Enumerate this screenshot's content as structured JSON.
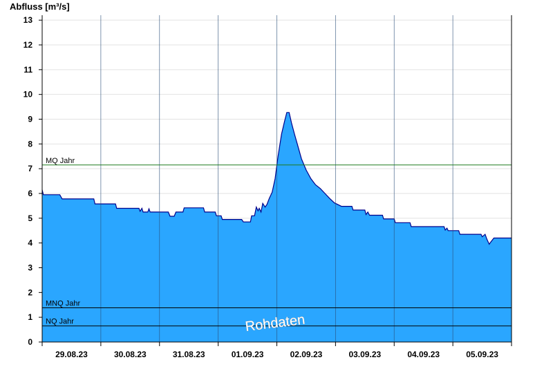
{
  "chart_data": {
    "type": "area",
    "ylabel": "Abfluss [m³/s]",
    "ylim": [
      0,
      13.2
    ],
    "yticks": [
      0,
      1,
      2,
      3,
      4,
      5,
      6,
      7,
      8,
      9,
      10,
      11,
      12,
      13
    ],
    "xlim": [
      0,
      8
    ],
    "xticks": [
      "29.08.23",
      "30.08.23",
      "31.08.23",
      "01.09.23",
      "02.09.23",
      "03.09.23",
      "04.09.23",
      "05.09.23"
    ],
    "grid": true,
    "reference_lines": [
      {
        "label": "MQ Jahr",
        "value": 7.15,
        "color": "#1e7a1e"
      },
      {
        "label": "MNQ Jahr",
        "value": 1.38,
        "color": "#000000"
      },
      {
        "label": "NQ Jahr",
        "value": 0.65,
        "color": "#000000"
      }
    ],
    "series": [
      {
        "fill": "#2aa6ff",
        "line": "#00008b",
        "points": [
          [
            0.0,
            6.15
          ],
          [
            0.02,
            5.95
          ],
          [
            0.3,
            5.95
          ],
          [
            0.34,
            5.78
          ],
          [
            0.7,
            5.78
          ],
          [
            0.88,
            5.78
          ],
          [
            0.9,
            5.58
          ],
          [
            1.25,
            5.58
          ],
          [
            1.27,
            5.4
          ],
          [
            1.65,
            5.4
          ],
          [
            1.67,
            5.28
          ],
          [
            1.7,
            5.4
          ],
          [
            1.72,
            5.25
          ],
          [
            1.8,
            5.25
          ],
          [
            1.82,
            5.38
          ],
          [
            1.84,
            5.25
          ],
          [
            2.15,
            5.25
          ],
          [
            2.18,
            5.08
          ],
          [
            2.25,
            5.08
          ],
          [
            2.28,
            5.25
          ],
          [
            2.4,
            5.25
          ],
          [
            2.42,
            5.42
          ],
          [
            2.75,
            5.42
          ],
          [
            2.77,
            5.25
          ],
          [
            2.95,
            5.25
          ],
          [
            2.97,
            5.1
          ],
          [
            3.05,
            5.1
          ],
          [
            3.07,
            4.95
          ],
          [
            3.4,
            4.95
          ],
          [
            3.43,
            4.85
          ],
          [
            3.55,
            4.85
          ],
          [
            3.57,
            5.1
          ],
          [
            3.62,
            5.1
          ],
          [
            3.65,
            5.45
          ],
          [
            3.68,
            5.3
          ],
          [
            3.7,
            5.4
          ],
          [
            3.73,
            5.25
          ],
          [
            3.76,
            5.6
          ],
          [
            3.8,
            5.45
          ],
          [
            3.83,
            5.55
          ],
          [
            3.87,
            5.8
          ],
          [
            3.92,
            6.05
          ],
          [
            3.97,
            6.6
          ],
          [
            4.02,
            7.5
          ],
          [
            4.08,
            8.4
          ],
          [
            4.13,
            8.9
          ],
          [
            4.17,
            9.27
          ],
          [
            4.21,
            9.27
          ],
          [
            4.25,
            8.85
          ],
          [
            4.3,
            8.4
          ],
          [
            4.36,
            7.9
          ],
          [
            4.42,
            7.4
          ],
          [
            4.5,
            6.95
          ],
          [
            4.58,
            6.6
          ],
          [
            4.66,
            6.35
          ],
          [
            4.74,
            6.2
          ],
          [
            4.82,
            6.0
          ],
          [
            4.9,
            5.8
          ],
          [
            4.98,
            5.62
          ],
          [
            5.1,
            5.48
          ],
          [
            5.28,
            5.48
          ],
          [
            5.3,
            5.33
          ],
          [
            5.5,
            5.33
          ],
          [
            5.52,
            5.15
          ],
          [
            5.55,
            5.25
          ],
          [
            5.58,
            5.12
          ],
          [
            5.8,
            5.12
          ],
          [
            5.82,
            4.97
          ],
          [
            6.0,
            4.97
          ],
          [
            6.02,
            4.82
          ],
          [
            6.27,
            4.82
          ],
          [
            6.29,
            4.66
          ],
          [
            6.85,
            4.66
          ],
          [
            6.87,
            4.52
          ],
          [
            6.9,
            4.6
          ],
          [
            6.92,
            4.5
          ],
          [
            7.1,
            4.5
          ],
          [
            7.12,
            4.35
          ],
          [
            7.48,
            4.35
          ],
          [
            7.5,
            4.25
          ],
          [
            7.55,
            4.35
          ],
          [
            7.58,
            4.15
          ],
          [
            7.62,
            3.95
          ],
          [
            7.65,
            4.05
          ],
          [
            7.7,
            4.2
          ],
          [
            8.0,
            4.2
          ]
        ]
      }
    ],
    "watermark": "Rohdaten"
  }
}
